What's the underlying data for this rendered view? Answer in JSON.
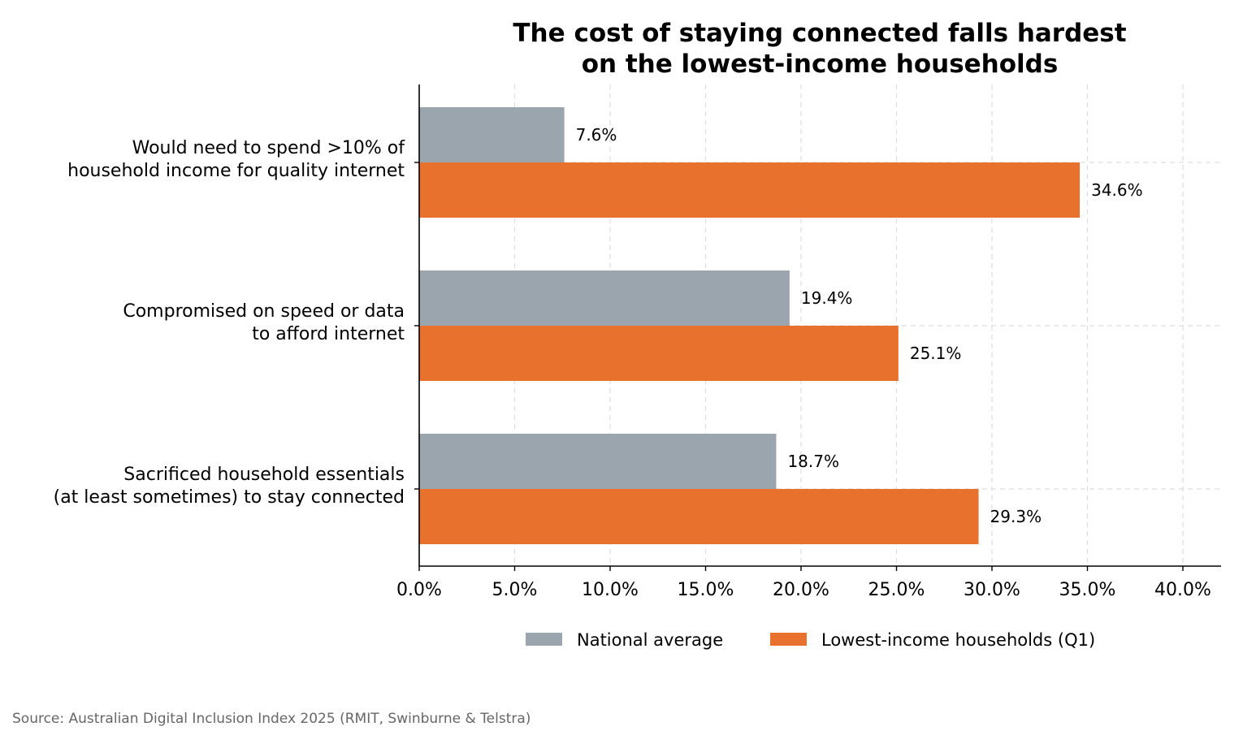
{
  "chart_data": {
    "type": "bar",
    "orientation": "horizontal",
    "title": [
      "The cost of staying connected falls hardest",
      "on the lowest-income households"
    ],
    "categories": [
      [
        "Would need to spend >10% of",
        "household income for quality internet"
      ],
      [
        "Compromised on speed or data",
        "to afford internet"
      ],
      [
        "Sacrificed household essentials",
        "(at least sometimes) to stay connected"
      ]
    ],
    "series": [
      {
        "name": "National average",
        "color": "#9ba5ad",
        "values": [
          7.6,
          19.4,
          18.7
        ],
        "labels": [
          "7.6%",
          "19.4%",
          "18.7%"
        ]
      },
      {
        "name": "Lowest-income households (Q1)",
        "color": "#e8712e",
        "values": [
          34.6,
          25.1,
          29.3
        ],
        "labels": [
          "34.6%",
          "25.1%",
          "29.3%"
        ]
      }
    ],
    "xlim": [
      0,
      42
    ],
    "xticks": [
      0,
      5,
      10,
      15,
      20,
      25,
      30,
      35,
      40
    ],
    "xtick_labels": [
      "0.0%",
      "5.0%",
      "10.0%",
      "15.0%",
      "20.0%",
      "25.0%",
      "30.0%",
      "35.0%",
      "40.0%"
    ],
    "grid": true,
    "grid_style": "dashed",
    "legend_position": "bottom-center",
    "xlabel": "",
    "ylabel": ""
  },
  "source_note": "Source: Australian Digital Inclusion Index 2025 (RMIT, Swinburne & Telstra)"
}
